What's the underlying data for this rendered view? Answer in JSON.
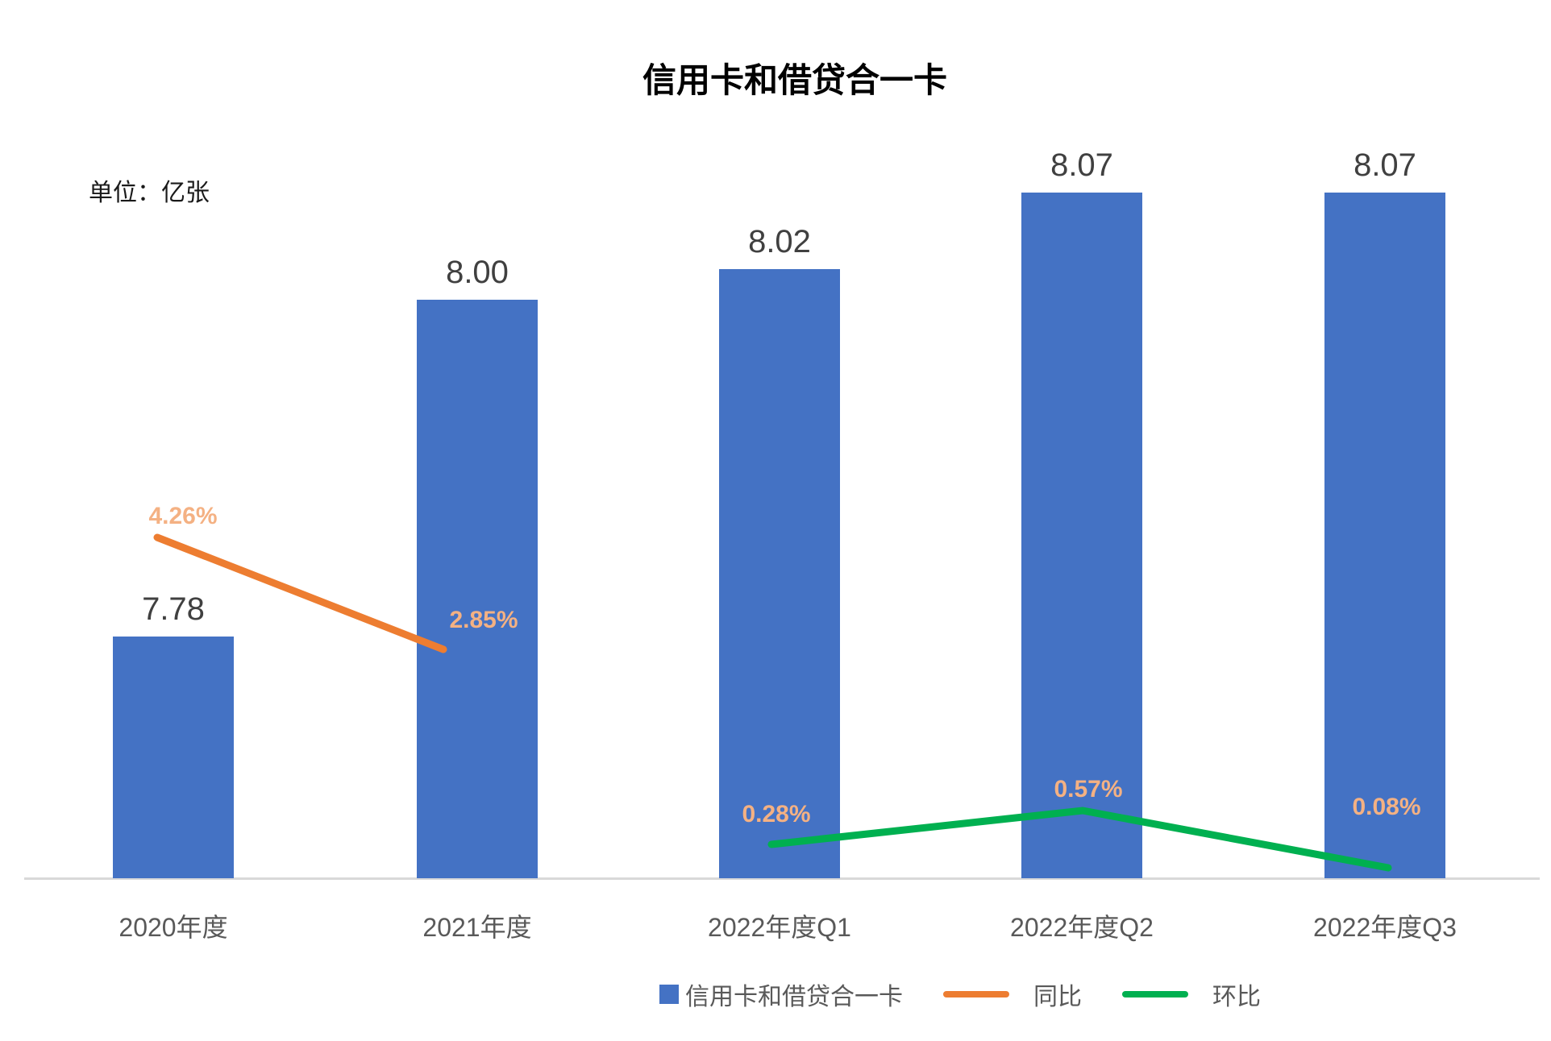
{
  "header": {
    "title": "信用卡和借贷合一卡",
    "unit_label": "单位：亿张"
  },
  "chart_data": {
    "type": "bar",
    "title": "信用卡和借贷合一卡",
    "unit": "亿张",
    "categories": [
      "2020年度",
      "2021年度",
      "2022年度Q1",
      "2022年度Q2",
      "2022年度Q3"
    ],
    "series": [
      {
        "name": "信用卡和借贷合一卡",
        "type": "bar",
        "axis": "primary",
        "values": [
          7.78,
          8.0,
          8.02,
          8.07,
          8.07
        ],
        "data_labels": [
          "7.78",
          "8.00",
          "8.02",
          "8.07",
          "8.07"
        ],
        "color": "#4472C4"
      },
      {
        "name": "同比",
        "type": "line",
        "axis": "secondary",
        "category_indexes": [
          0,
          1
        ],
        "values_percent": [
          4.26,
          2.85
        ],
        "data_labels": [
          "4.26%",
          "2.85%"
        ],
        "color": "#ED7D31"
      },
      {
        "name": "环比",
        "type": "line",
        "axis": "secondary",
        "category_indexes": [
          2,
          3,
          4
        ],
        "values_percent": [
          0.28,
          0.57,
          0.08
        ],
        "data_labels": [
          "0.28%",
          "0.57%",
          "0.08%"
        ],
        "color": "#00B050"
      }
    ],
    "primary_axis": {
      "visible": false,
      "range_hint": [
        7.62,
        8.12
      ]
    },
    "secondary_axis": {
      "visible": false,
      "range_hint_percent": [
        0,
        4.5
      ]
    },
    "grid": false,
    "legend_position": "bottom",
    "colors": {
      "bar_value_labels": "#404040",
      "percent_labels": "#F4B183",
      "axis_text": "#595959",
      "axis_line": "#D9D9D9"
    }
  },
  "legend": {
    "items": [
      {
        "label": "信用卡和借贷合一卡",
        "marker": "square",
        "color": "#4472C4"
      },
      {
        "label": "同比",
        "marker": "line",
        "color": "#ED7D31"
      },
      {
        "label": "环比",
        "marker": "line",
        "color": "#00B050"
      }
    ]
  }
}
